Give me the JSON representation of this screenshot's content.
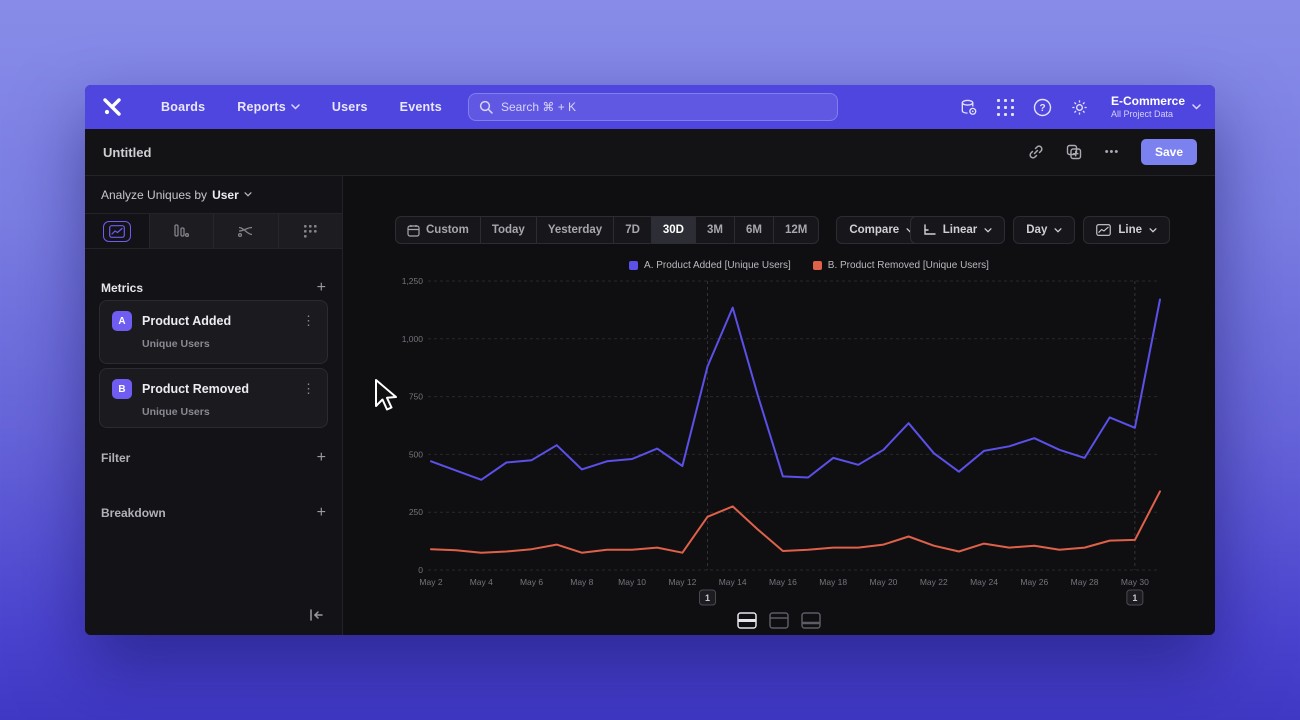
{
  "colors": {
    "nav_bg": "#4f46e0",
    "accent": "#6f5cf0",
    "save_bg": "#7b82f0",
    "series_a": "#5b50e8",
    "series_b": "#df614a"
  },
  "nav": {
    "items": [
      "Boards",
      "Reports",
      "Users",
      "Events"
    ],
    "search_placeholder": "Search  ⌘ + K",
    "project_name": "E-Commerce",
    "project_scope": "All Project Data"
  },
  "titlebar": {
    "title": "Untitled",
    "ellipsis": "•••",
    "save_label": "Save"
  },
  "sidebar": {
    "analyze_prefix": "Analyze Uniques by",
    "analyze_value": "User",
    "metrics_label": "Metrics",
    "plus": "+",
    "metrics": [
      {
        "badge": "A",
        "name": "Product Added",
        "subtitle": "Unique Users",
        "kebab": "⋮"
      },
      {
        "badge": "B",
        "name": "Product Removed",
        "subtitle": "Unique Users",
        "kebab": "⋮"
      }
    ],
    "filter_label": "Filter",
    "breakdown_label": "Breakdown"
  },
  "controls": {
    "ranges": [
      "Custom",
      "Today",
      "Yesterday",
      "7D",
      "30D",
      "3M",
      "6M",
      "12M"
    ],
    "selected_range": "30D",
    "compare_label": "Compare",
    "scale_label": "Linear",
    "interval_label": "Day",
    "chart_type_label": "Line"
  },
  "legend": [
    {
      "label": "A. Product Added [Unique Users]",
      "color": "#5b50e8"
    },
    {
      "label": "B. Product Removed [Unique Users]",
      "color": "#df614a"
    }
  ],
  "chart_data": {
    "type": "line",
    "title": "",
    "x": [
      "May 2",
      "May 3",
      "May 4",
      "May 5",
      "May 6",
      "May 7",
      "May 8",
      "May 9",
      "May 10",
      "May 11",
      "May 12",
      "May 13",
      "May 14",
      "May 15",
      "May 16",
      "May 17",
      "May 18",
      "May 19",
      "May 20",
      "May 21",
      "May 22",
      "May 23",
      "May 24",
      "May 25",
      "May 26",
      "May 27",
      "May 28",
      "May 29",
      "May 30",
      "May 31"
    ],
    "x_tick_every": 2,
    "series": [
      {
        "name": "A. Product Added [Unique Users]",
        "color": "#5b50e8",
        "values": [
          470,
          430,
          390,
          465,
          475,
          540,
          435,
          470,
          480,
          525,
          450,
          880,
          1135,
          755,
          405,
          400,
          485,
          455,
          520,
          635,
          505,
          425,
          515,
          535,
          570,
          520,
          485,
          660,
          615,
          1170
        ]
      },
      {
        "name": "B. Product Removed [Unique Users]",
        "color": "#df614a",
        "values": [
          90,
          85,
          75,
          80,
          90,
          110,
          75,
          88,
          88,
          97,
          75,
          230,
          275,
          175,
          82,
          88,
          97,
          97,
          110,
          145,
          105,
          80,
          114,
          97,
          105,
          88,
          97,
          127,
          130,
          340
        ]
      }
    ],
    "ylim": [
      0,
      1250
    ],
    "yticks": [
      0,
      250,
      500,
      750,
      1000,
      1250
    ],
    "ytick_labels": [
      "0",
      "250",
      "500",
      "750",
      "1,000",
      "1,250"
    ],
    "grid": "horizontal-dashed",
    "legend_position": "top-center",
    "annotations": [
      {
        "x": "May 13",
        "label": "1"
      },
      {
        "x": "May 30",
        "label": "1"
      }
    ]
  }
}
